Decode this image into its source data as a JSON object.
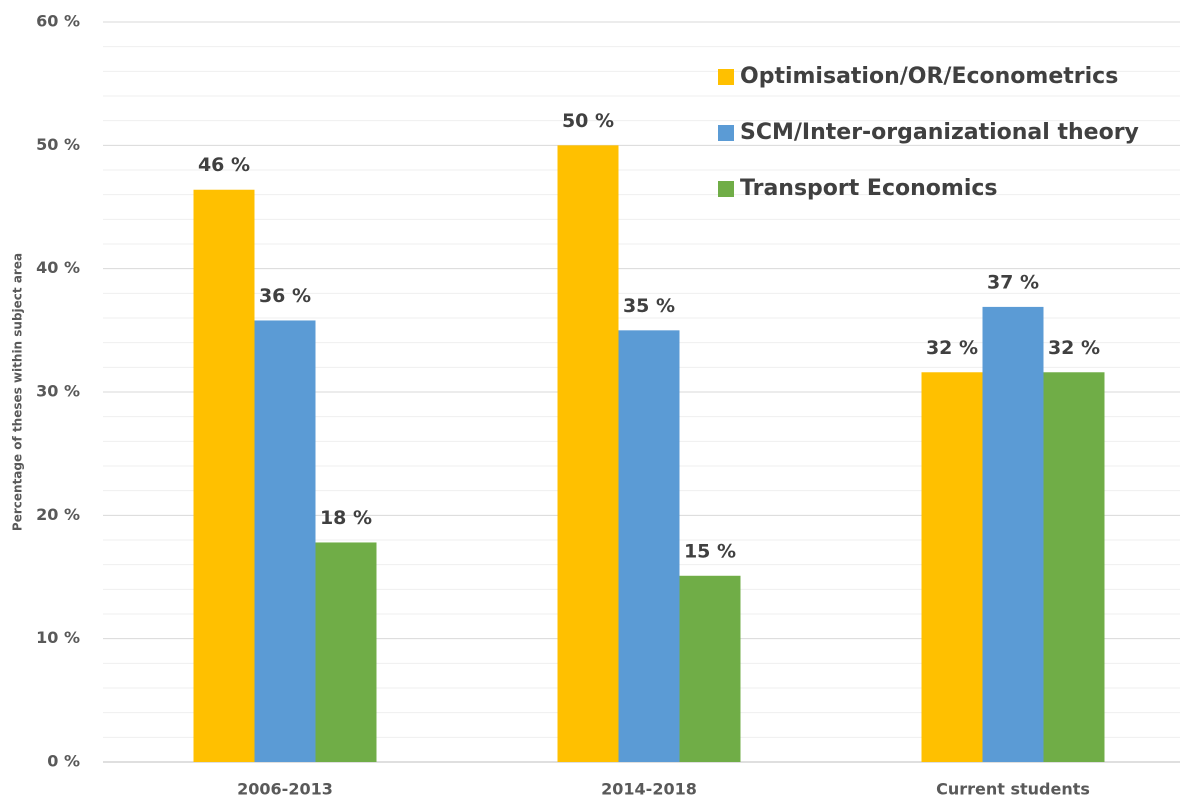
{
  "chart_data": {
    "type": "bar",
    "y_label": "Percentage of theses within subject area",
    "categories": [
      "2006-2013",
      "2014-2018",
      "Current students"
    ],
    "series": [
      {
        "name": "Optimisation/OR/Econometrics",
        "color": "#ffc000",
        "values": [
          46.4,
          50.0,
          31.6
        ],
        "value_labels": [
          "46 %",
          "50 %",
          "32 %"
        ]
      },
      {
        "name": "SCM/Inter-organizational theory",
        "color": "#5b9bd5",
        "values": [
          35.8,
          35.0,
          36.9
        ],
        "value_labels": [
          "36 %",
          "35 %",
          "37 %"
        ]
      },
      {
        "name": "Transport Economics",
        "color": "#70ad47",
        "values": [
          17.8,
          15.1,
          31.6
        ],
        "value_labels": [
          "18 %",
          "15 %",
          "32 %"
        ]
      }
    ],
    "ylim": [
      0,
      60
    ],
    "yticks": [
      {
        "value": 0,
        "label": "0 %"
      },
      {
        "value": 10,
        "label": "10 %"
      },
      {
        "value": 20,
        "label": "20 %"
      },
      {
        "value": 30,
        "label": "30 %"
      },
      {
        "value": 40,
        "label": "40 %"
      },
      {
        "value": 50,
        "label": "50 %"
      },
      {
        "value": 60,
        "label": "60 %"
      }
    ],
    "minor_yticks": [
      2,
      4,
      6,
      8,
      12,
      14,
      16,
      18,
      22,
      24,
      26,
      28,
      32,
      34,
      36,
      38,
      42,
      44,
      46,
      48,
      52,
      54,
      56,
      58
    ],
    "grid": true,
    "legend": "upper right"
  }
}
